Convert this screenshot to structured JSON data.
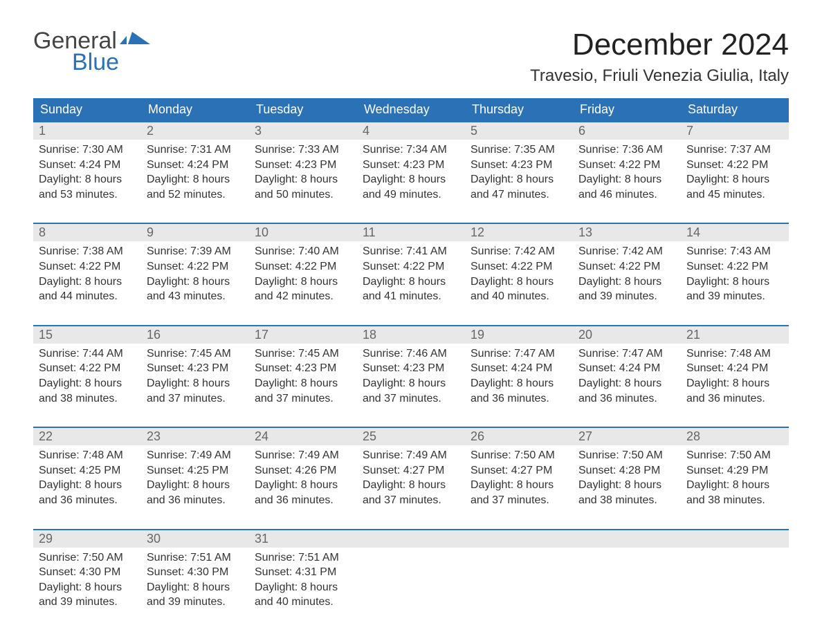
{
  "brand": {
    "general": "General",
    "blue": "Blue"
  },
  "title": "December 2024",
  "location": "Travesio, Friuli Venezia Giulia, Italy",
  "colors": {
    "accent": "#2a72b5",
    "header_row_bg": "#2a72b5",
    "header_row_text": "#ffffff",
    "daynum_bg": "#e8e8e8",
    "daynum_text": "#666666",
    "body_text": "#333333",
    "background": "#ffffff"
  },
  "typography": {
    "title_fontsize": 44,
    "location_fontsize": 24,
    "weekday_fontsize": 18,
    "daynum_fontsize": 18,
    "cell_fontsize": 16
  },
  "weekdays": [
    "Sunday",
    "Monday",
    "Tuesday",
    "Wednesday",
    "Thursday",
    "Friday",
    "Saturday"
  ],
  "weeks": [
    [
      {
        "n": "1",
        "sunrise": "Sunrise: 7:30 AM",
        "sunset": "Sunset: 4:24 PM",
        "d1": "Daylight: 8 hours",
        "d2": "and 53 minutes."
      },
      {
        "n": "2",
        "sunrise": "Sunrise: 7:31 AM",
        "sunset": "Sunset: 4:24 PM",
        "d1": "Daylight: 8 hours",
        "d2": "and 52 minutes."
      },
      {
        "n": "3",
        "sunrise": "Sunrise: 7:33 AM",
        "sunset": "Sunset: 4:23 PM",
        "d1": "Daylight: 8 hours",
        "d2": "and 50 minutes."
      },
      {
        "n": "4",
        "sunrise": "Sunrise: 7:34 AM",
        "sunset": "Sunset: 4:23 PM",
        "d1": "Daylight: 8 hours",
        "d2": "and 49 minutes."
      },
      {
        "n": "5",
        "sunrise": "Sunrise: 7:35 AM",
        "sunset": "Sunset: 4:23 PM",
        "d1": "Daylight: 8 hours",
        "d2": "and 47 minutes."
      },
      {
        "n": "6",
        "sunrise": "Sunrise: 7:36 AM",
        "sunset": "Sunset: 4:22 PM",
        "d1": "Daylight: 8 hours",
        "d2": "and 46 minutes."
      },
      {
        "n": "7",
        "sunrise": "Sunrise: 7:37 AM",
        "sunset": "Sunset: 4:22 PM",
        "d1": "Daylight: 8 hours",
        "d2": "and 45 minutes."
      }
    ],
    [
      {
        "n": "8",
        "sunrise": "Sunrise: 7:38 AM",
        "sunset": "Sunset: 4:22 PM",
        "d1": "Daylight: 8 hours",
        "d2": "and 44 minutes."
      },
      {
        "n": "9",
        "sunrise": "Sunrise: 7:39 AM",
        "sunset": "Sunset: 4:22 PM",
        "d1": "Daylight: 8 hours",
        "d2": "and 43 minutes."
      },
      {
        "n": "10",
        "sunrise": "Sunrise: 7:40 AM",
        "sunset": "Sunset: 4:22 PM",
        "d1": "Daylight: 8 hours",
        "d2": "and 42 minutes."
      },
      {
        "n": "11",
        "sunrise": "Sunrise: 7:41 AM",
        "sunset": "Sunset: 4:22 PM",
        "d1": "Daylight: 8 hours",
        "d2": "and 41 minutes."
      },
      {
        "n": "12",
        "sunrise": "Sunrise: 7:42 AM",
        "sunset": "Sunset: 4:22 PM",
        "d1": "Daylight: 8 hours",
        "d2": "and 40 minutes."
      },
      {
        "n": "13",
        "sunrise": "Sunrise: 7:42 AM",
        "sunset": "Sunset: 4:22 PM",
        "d1": "Daylight: 8 hours",
        "d2": "and 39 minutes."
      },
      {
        "n": "14",
        "sunrise": "Sunrise: 7:43 AM",
        "sunset": "Sunset: 4:22 PM",
        "d1": "Daylight: 8 hours",
        "d2": "and 39 minutes."
      }
    ],
    [
      {
        "n": "15",
        "sunrise": "Sunrise: 7:44 AM",
        "sunset": "Sunset: 4:22 PM",
        "d1": "Daylight: 8 hours",
        "d2": "and 38 minutes."
      },
      {
        "n": "16",
        "sunrise": "Sunrise: 7:45 AM",
        "sunset": "Sunset: 4:23 PM",
        "d1": "Daylight: 8 hours",
        "d2": "and 37 minutes."
      },
      {
        "n": "17",
        "sunrise": "Sunrise: 7:45 AM",
        "sunset": "Sunset: 4:23 PM",
        "d1": "Daylight: 8 hours",
        "d2": "and 37 minutes."
      },
      {
        "n": "18",
        "sunrise": "Sunrise: 7:46 AM",
        "sunset": "Sunset: 4:23 PM",
        "d1": "Daylight: 8 hours",
        "d2": "and 37 minutes."
      },
      {
        "n": "19",
        "sunrise": "Sunrise: 7:47 AM",
        "sunset": "Sunset: 4:24 PM",
        "d1": "Daylight: 8 hours",
        "d2": "and 36 minutes."
      },
      {
        "n": "20",
        "sunrise": "Sunrise: 7:47 AM",
        "sunset": "Sunset: 4:24 PM",
        "d1": "Daylight: 8 hours",
        "d2": "and 36 minutes."
      },
      {
        "n": "21",
        "sunrise": "Sunrise: 7:48 AM",
        "sunset": "Sunset: 4:24 PM",
        "d1": "Daylight: 8 hours",
        "d2": "and 36 minutes."
      }
    ],
    [
      {
        "n": "22",
        "sunrise": "Sunrise: 7:48 AM",
        "sunset": "Sunset: 4:25 PM",
        "d1": "Daylight: 8 hours",
        "d2": "and 36 minutes."
      },
      {
        "n": "23",
        "sunrise": "Sunrise: 7:49 AM",
        "sunset": "Sunset: 4:25 PM",
        "d1": "Daylight: 8 hours",
        "d2": "and 36 minutes."
      },
      {
        "n": "24",
        "sunrise": "Sunrise: 7:49 AM",
        "sunset": "Sunset: 4:26 PM",
        "d1": "Daylight: 8 hours",
        "d2": "and 36 minutes."
      },
      {
        "n": "25",
        "sunrise": "Sunrise: 7:49 AM",
        "sunset": "Sunset: 4:27 PM",
        "d1": "Daylight: 8 hours",
        "d2": "and 37 minutes."
      },
      {
        "n": "26",
        "sunrise": "Sunrise: 7:50 AM",
        "sunset": "Sunset: 4:27 PM",
        "d1": "Daylight: 8 hours",
        "d2": "and 37 minutes."
      },
      {
        "n": "27",
        "sunrise": "Sunrise: 7:50 AM",
        "sunset": "Sunset: 4:28 PM",
        "d1": "Daylight: 8 hours",
        "d2": "and 38 minutes."
      },
      {
        "n": "28",
        "sunrise": "Sunrise: 7:50 AM",
        "sunset": "Sunset: 4:29 PM",
        "d1": "Daylight: 8 hours",
        "d2": "and 38 minutes."
      }
    ],
    [
      {
        "n": "29",
        "sunrise": "Sunrise: 7:50 AM",
        "sunset": "Sunset: 4:30 PM",
        "d1": "Daylight: 8 hours",
        "d2": "and 39 minutes."
      },
      {
        "n": "30",
        "sunrise": "Sunrise: 7:51 AM",
        "sunset": "Sunset: 4:30 PM",
        "d1": "Daylight: 8 hours",
        "d2": "and 39 minutes."
      },
      {
        "n": "31",
        "sunrise": "Sunrise: 7:51 AM",
        "sunset": "Sunset: 4:31 PM",
        "d1": "Daylight: 8 hours",
        "d2": "and 40 minutes."
      },
      null,
      null,
      null,
      null
    ]
  ]
}
